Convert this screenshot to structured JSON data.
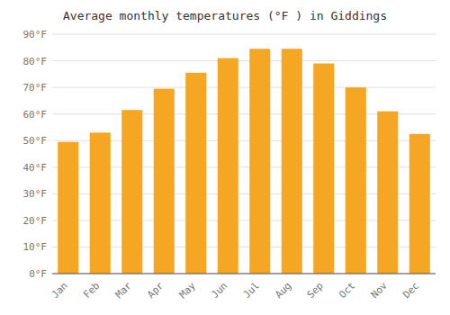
{
  "chart_data": {
    "type": "bar",
    "title": "Average monthly temperatures (°F ) in Giddings",
    "categories": [
      "Jan",
      "Feb",
      "Mar",
      "Apr",
      "May",
      "Jun",
      "Jul",
      "Aug",
      "Sep",
      "Oct",
      "Nov",
      "Dec"
    ],
    "values": [
      49.5,
      53,
      61.5,
      69.5,
      75.5,
      81,
      84.5,
      84.5,
      79,
      70,
      61,
      52.5
    ],
    "color": "#F5A623",
    "ylim": [
      0,
      90
    ],
    "yticks": [
      {
        "value": 0,
        "label": "0°F"
      },
      {
        "value": 10,
        "label": "10°F"
      },
      {
        "value": 20,
        "label": "20°F"
      },
      {
        "value": 30,
        "label": "30°F"
      },
      {
        "value": 40,
        "label": "40°F"
      },
      {
        "value": 50,
        "label": "50°F"
      },
      {
        "value": 60,
        "label": "60°F"
      },
      {
        "value": 70,
        "label": "70°F"
      },
      {
        "value": 80,
        "label": "80°F"
      },
      {
        "value": 90,
        "label": "90°F"
      }
    ],
    "grid": true
  }
}
